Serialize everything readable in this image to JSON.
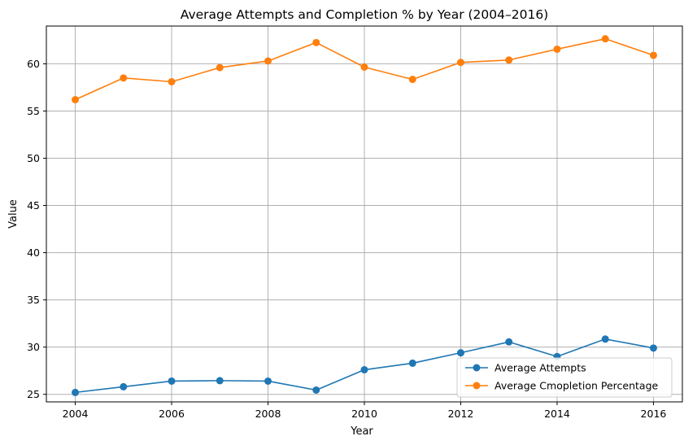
{
  "chart_data": {
    "type": "line",
    "title": "Average Attempts and Completion % by Year (2004–2016)",
    "xlabel": "Year",
    "ylabel": "Value",
    "x": [
      2004,
      2005,
      2006,
      2007,
      2008,
      2009,
      2010,
      2011,
      2012,
      2013,
      2014,
      2015,
      2016
    ],
    "xlim": [
      2003.4,
      2016.6
    ],
    "ylim": [
      24.2,
      64.0
    ],
    "xticks": [
      "2004",
      "2006",
      "2008",
      "2010",
      "2012",
      "2014",
      "2016"
    ],
    "yticks": [
      "25",
      "30",
      "35",
      "40",
      "45",
      "50",
      "55",
      "60"
    ],
    "grid": true,
    "legend_position": "bottom-right",
    "series": [
      {
        "name": "Average Attempts",
        "color": "#1f77b4",
        "marker": "circle",
        "values": [
          25.2,
          25.8,
          26.4,
          26.45,
          26.4,
          25.45,
          27.6,
          28.3,
          29.4,
          30.55,
          29.0,
          30.85,
          29.9
        ]
      },
      {
        "name": "Average Cmopletion Percentage",
        "color": "#ff7f0e",
        "marker": "circle",
        "values": [
          56.2,
          58.5,
          58.1,
          59.6,
          60.3,
          62.25,
          59.65,
          58.35,
          60.15,
          60.4,
          61.55,
          62.65,
          60.9
        ]
      }
    ]
  }
}
